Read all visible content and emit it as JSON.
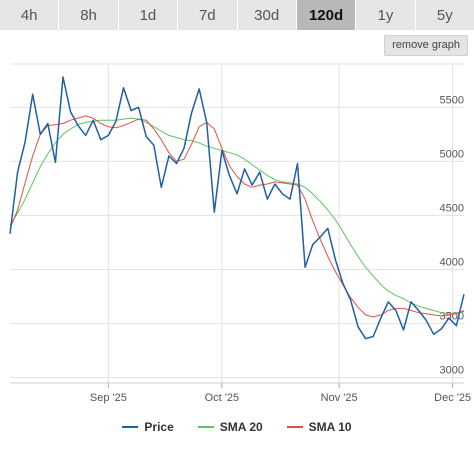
{
  "ranges": [
    "4h",
    "8h",
    "1d",
    "7d",
    "30d",
    "120d",
    "1y",
    "5y"
  ],
  "active_range": "120d",
  "remove_graph_label": "remove graph",
  "colors": {
    "price": "#1f5fa6",
    "sma20": "#5ec45e",
    "sma10": "#e0504a",
    "grid": "#e3e3e3"
  },
  "chart_data": {
    "type": "line",
    "x_tick_labels": [
      "Sep '25",
      "Oct '25",
      "Nov '25",
      "Dec '25"
    ],
    "y_ticks": [
      3000,
      3500,
      4000,
      4500,
      5000,
      5500
    ],
    "ylim": [
      2950,
      5900
    ],
    "grid": true,
    "legend_position": "bottom",
    "x": [
      0,
      2,
      4,
      6,
      8,
      10,
      12,
      14,
      16,
      18,
      20,
      22,
      24,
      26,
      28,
      30,
      32,
      34,
      36,
      38,
      40,
      42,
      44,
      46,
      48,
      50,
      52,
      54,
      56,
      58,
      60,
      62,
      64,
      66,
      68,
      70,
      72,
      74,
      76,
      78,
      80,
      82,
      84,
      86,
      88,
      90,
      92,
      94,
      96,
      98,
      100,
      102,
      104,
      106,
      108,
      110,
      112,
      114,
      116,
      118,
      120
    ],
    "series": [
      {
        "name": "Price",
        "values": [
          4330,
          4900,
          5180,
          5620,
          5250,
          5350,
          4990,
          5780,
          5460,
          5330,
          5240,
          5380,
          5200,
          5240,
          5370,
          5680,
          5470,
          5500,
          5230,
          5150,
          4760,
          5050,
          4980,
          5120,
          5450,
          5670,
          5360,
          4530,
          5100,
          4870,
          4700,
          4930,
          4780,
          4900,
          4650,
          4790,
          4700,
          4650,
          4980,
          4020,
          4230,
          4300,
          4380,
          4090,
          3870,
          3720,
          3470,
          3360,
          3380,
          3550,
          3700,
          3620,
          3440,
          3700,
          3620,
          3530,
          3400,
          3450,
          3550,
          3480,
          3770
        ]
      },
      {
        "name": "SMA 20",
        "values": [
          4410,
          4520,
          4650,
          4800,
          4950,
          5070,
          5170,
          5250,
          5300,
          5340,
          5360,
          5370,
          5380,
          5380,
          5380,
          5390,
          5400,
          5390,
          5360,
          5320,
          5280,
          5240,
          5220,
          5200,
          5190,
          5170,
          5140,
          5120,
          5100,
          5080,
          5060,
          5020,
          4970,
          4920,
          4870,
          4830,
          4810,
          4800,
          4790,
          4760,
          4700,
          4630,
          4550,
          4460,
          4350,
          4230,
          4120,
          4020,
          3940,
          3860,
          3800,
          3760,
          3730,
          3690,
          3660,
          3640,
          3620,
          3600,
          3590,
          3600,
          3610
        ]
      },
      {
        "name": "SMA 10",
        "values": [
          4380,
          4550,
          4800,
          5050,
          5250,
          5330,
          5340,
          5350,
          5380,
          5400,
          5420,
          5400,
          5350,
          5320,
          5310,
          5330,
          5360,
          5390,
          5380,
          5300,
          5200,
          5080,
          5000,
          5020,
          5160,
          5320,
          5360,
          5300,
          5120,
          4960,
          4860,
          4790,
          4760,
          4780,
          4790,
          4810,
          4800,
          4790,
          4780,
          4650,
          4450,
          4280,
          4120,
          3980,
          3860,
          3740,
          3650,
          3580,
          3560,
          3580,
          3620,
          3640,
          3640,
          3620,
          3600,
          3590,
          3580,
          3570,
          3580,
          3590,
          3620
        ]
      }
    ]
  }
}
